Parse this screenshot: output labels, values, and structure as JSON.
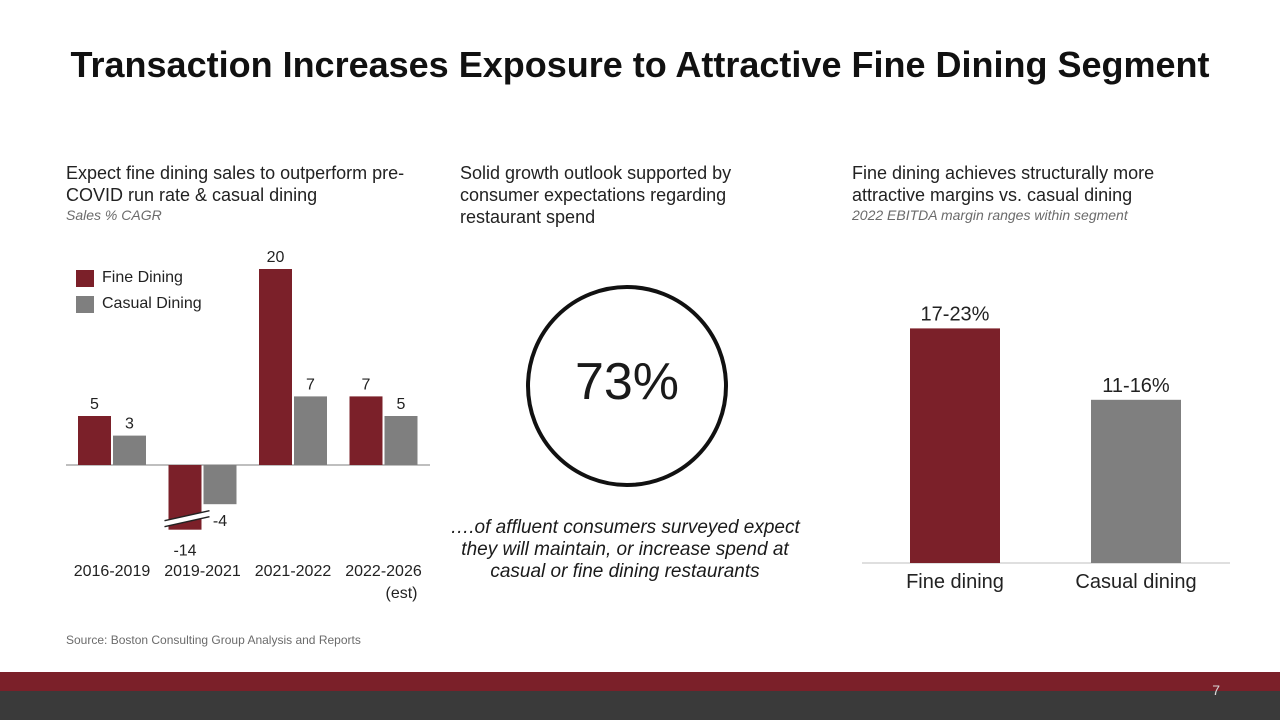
{
  "title": "Transaction Increases Exposure to Attractive Fine Dining Segment",
  "colors": {
    "fine": "#7b2029",
    "casual": "#7f7f7f",
    "axis": "#bfbfbf",
    "band_red": "#7b2029",
    "band_dark": "#3a3a3a"
  },
  "left": {
    "heading": "Expect fine dining sales to outperform pre-COVID run rate & casual dining",
    "subheading": "Sales % CAGR"
  },
  "middle": {
    "heading": "Solid growth outlook supported by consumer expectations regarding restaurant spend",
    "circle_value": "73%",
    "caption": "….of affluent consumers surveyed expect they will maintain, or increase spend at casual or fine dining restaurants"
  },
  "right": {
    "heading": "Fine dining achieves structurally more attractive margins vs. casual dining",
    "subheading": "2022 EBITDA margin ranges within segment"
  },
  "source": "Source: Boston Consulting Group Analysis and Reports",
  "page_number": "7",
  "chart_data": [
    {
      "type": "bar",
      "title": "Sales % CAGR",
      "categories": [
        "2016-2019",
        "2019-2021",
        "2021-2022",
        "2022-2026 (est)"
      ],
      "series": [
        {
          "name": "Fine Dining",
          "color": "#7b2029",
          "values": [
            5,
            -14,
            20,
            7
          ],
          "labels": [
            "5",
            "-14",
            "20",
            "7"
          ]
        },
        {
          "name": "Casual Dining",
          "color": "#7f7f7f",
          "values": [
            3,
            -4,
            7,
            5
          ],
          "labels": [
            "3",
            "-4",
            "7",
            "5"
          ]
        }
      ],
      "axis_break": {
        "series": "Fine Dining",
        "category": "2019-2021"
      },
      "ylim": [
        -14,
        20
      ],
      "legend": "top-left"
    },
    {
      "type": "bar",
      "title": "2022 EBITDA margin ranges within segment",
      "categories": [
        "Fine dining",
        "Casual dining"
      ],
      "values": [
        [
          17,
          23
        ],
        [
          11,
          16
        ]
      ],
      "labels": [
        "17-23%",
        "11-16%"
      ],
      "colors": [
        "#7b2029",
        "#7f7f7f"
      ],
      "ylim": [
        0,
        25
      ]
    }
  ]
}
